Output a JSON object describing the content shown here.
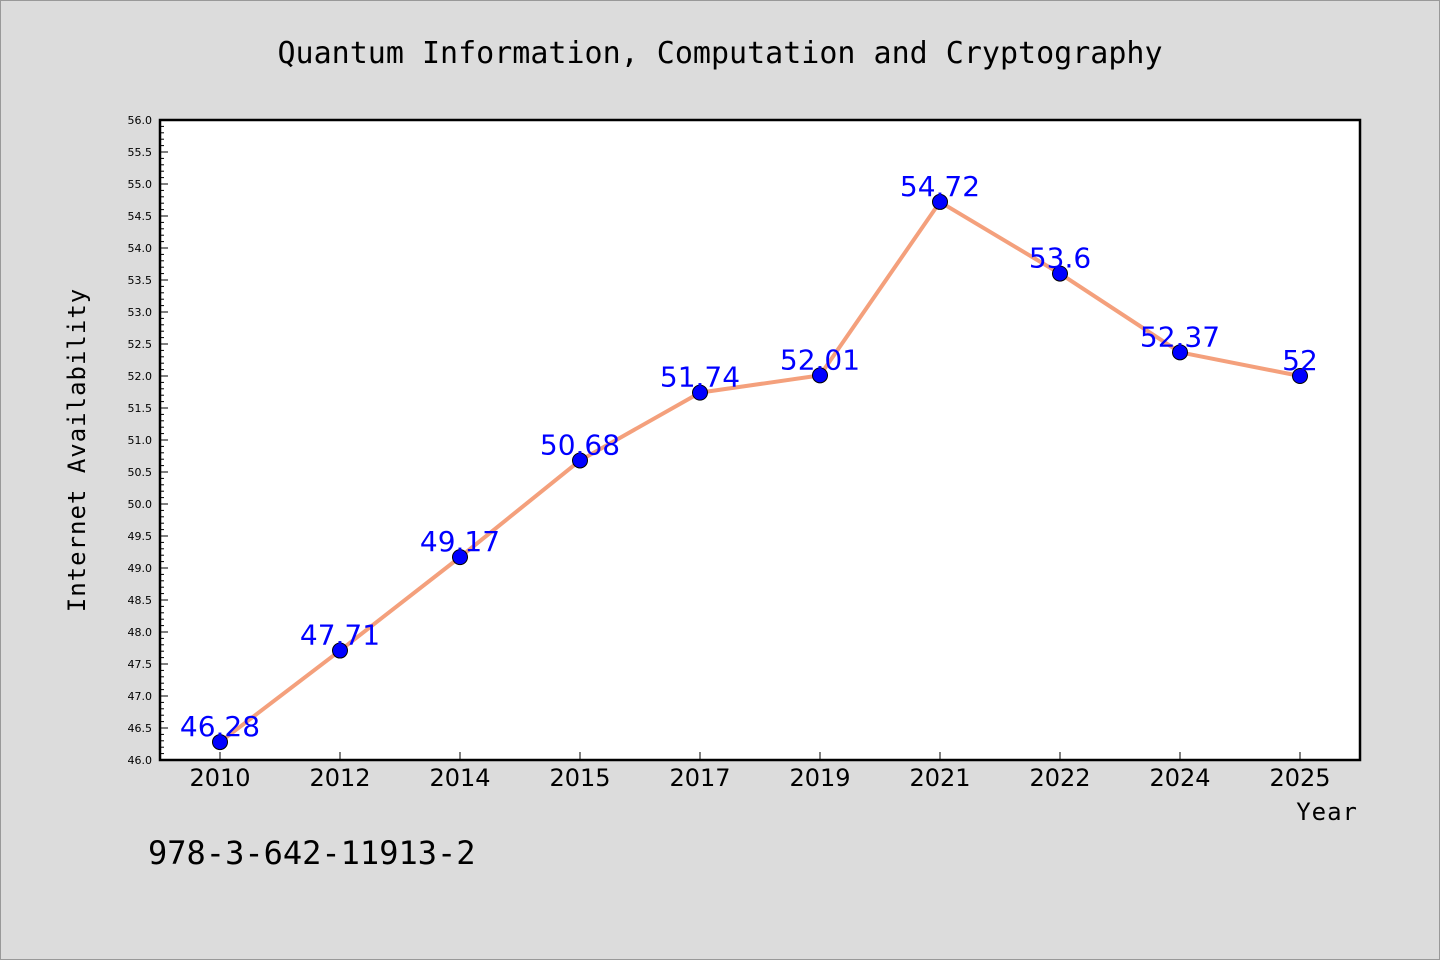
{
  "chart_data": {
    "type": "line",
    "title": "Quantum Information, Computation and Cryptography",
    "xlabel": "Year",
    "ylabel": "Internet Availability",
    "categories": [
      "2010",
      "2012",
      "2014",
      "2015",
      "2017",
      "2019",
      "2021",
      "2022",
      "2024",
      "2025"
    ],
    "series": [
      {
        "values": [
          46.28,
          47.71,
          49.17,
          50.68,
          51.74,
          52.01,
          54.72,
          53.6,
          52.37,
          52
        ],
        "data_labels": [
          "46.28",
          "47.71",
          "49.17",
          "50.68",
          "51.74",
          "52.01",
          "54.72",
          "53.6",
          "52.37",
          "52"
        ],
        "line_color": "#f4a07c",
        "marker_color": "#0000ff"
      }
    ],
    "ylim": [
      46.0,
      56.0
    ],
    "yticks": [
      "46.0",
      "46.5",
      "47.0",
      "47.5",
      "48.0",
      "48.5",
      "49.0",
      "49.5",
      "50.0",
      "50.5",
      "51.0",
      "51.5",
      "52.0",
      "52.5",
      "53.0",
      "53.5",
      "54.0",
      "54.5",
      "55.0",
      "55.5",
      "56.0"
    ],
    "grid": false,
    "background_color": "#dcdcdc",
    "plot_background_color": "#ffffff"
  },
  "footer_text": "978-3-642-11913-2"
}
